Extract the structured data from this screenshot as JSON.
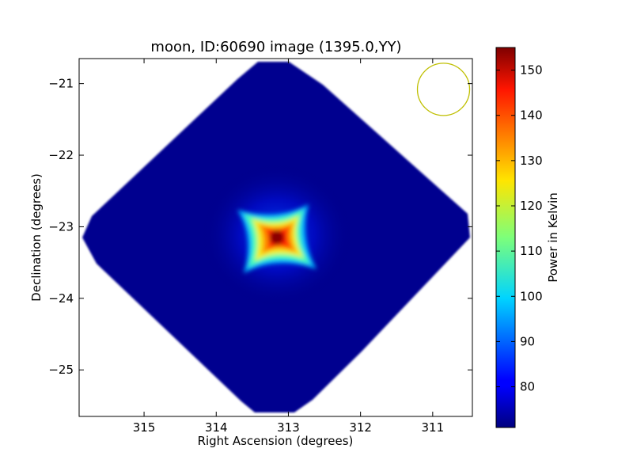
{
  "chart_data": {
    "type": "heatmap",
    "title": "moon, ID:60690 image (1395.0,YY)",
    "xlabel": "Right Ascension (degrees)",
    "ylabel": "Declination (degrees)",
    "xlim": [
      315.9,
      310.45
    ],
    "ylim": [
      -25.65,
      -20.65
    ],
    "x_ticks": [
      315,
      314,
      313,
      312,
      311
    ],
    "x_tick_labels": [
      "315",
      "314",
      "313",
      "312",
      "311"
    ],
    "y_ticks": [
      -21,
      -22,
      -23,
      -24,
      -25
    ],
    "y_tick_labels": [
      "−21",
      "−22",
      "−23",
      "−24",
      "−25"
    ],
    "colorbar": {
      "label": "Power in Kelvin",
      "range": [
        71,
        155
      ],
      "ticks": [
        80,
        90,
        100,
        110,
        120,
        130,
        140,
        150
      ],
      "tick_labels": [
        "80",
        "90",
        "100",
        "110",
        "120",
        "130",
        "140",
        "150"
      ],
      "colormap": "jet"
    },
    "field": {
      "shape": "diamond",
      "center_ra": 313.1,
      "center_dec": -23.1,
      "background_value": 72,
      "outside_color": "#ffffff"
    },
    "peak": {
      "ra": 313.1,
      "dec": -23.15,
      "value": 155,
      "shape": "square rotated, concave sides"
    },
    "beam_circle": {
      "ra": 310.85,
      "dec": -21.08,
      "color": "#bfbf00"
    },
    "grid": false
  }
}
